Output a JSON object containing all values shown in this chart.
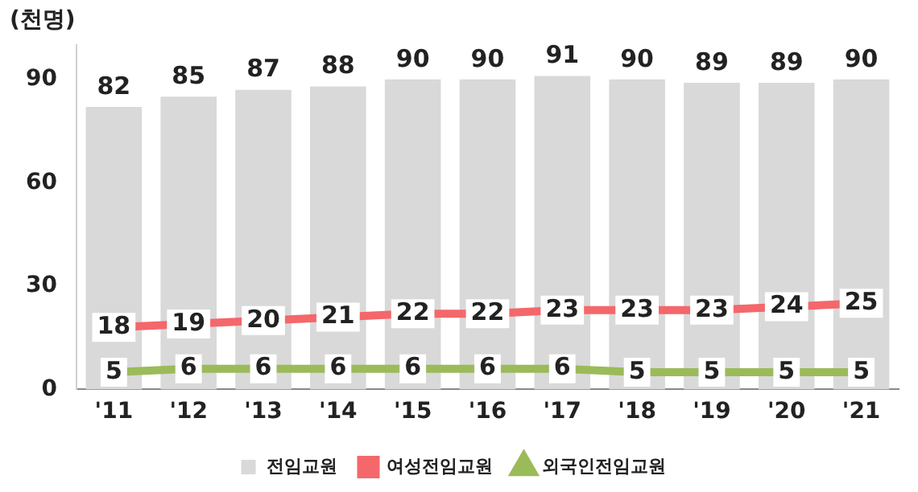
{
  "chart_data": {
    "type": "bar",
    "ylabel": "(천명)",
    "categories": [
      "'11",
      "'12",
      "'13",
      "'14",
      "'15",
      "'16",
      "'17",
      "'18",
      "'19",
      "'20",
      "'21"
    ],
    "series": [
      {
        "name": "전임교원",
        "color": "#d9d9d9",
        "values": [
          82,
          85,
          87,
          88,
          90,
          90,
          91,
          90,
          89,
          89,
          90
        ]
      },
      {
        "name": "여성전임교원",
        "type": "line",
        "marker": "square",
        "color": "#f4676a",
        "values": [
          18,
          19,
          20,
          21,
          22,
          22,
          23,
          23,
          23,
          24,
          25
        ]
      },
      {
        "name": "외국인전임교원",
        "type": "line",
        "marker": "triangle",
        "color": "#9bbb59",
        "values": [
          5,
          6,
          6,
          6,
          6,
          6,
          6,
          5,
          5,
          5,
          5
        ]
      }
    ],
    "ylim": [
      0,
      100
    ],
    "yticks": [
      0,
      30,
      60,
      90
    ],
    "grid": false,
    "legend": "bottom",
    "data_labels": true
  }
}
